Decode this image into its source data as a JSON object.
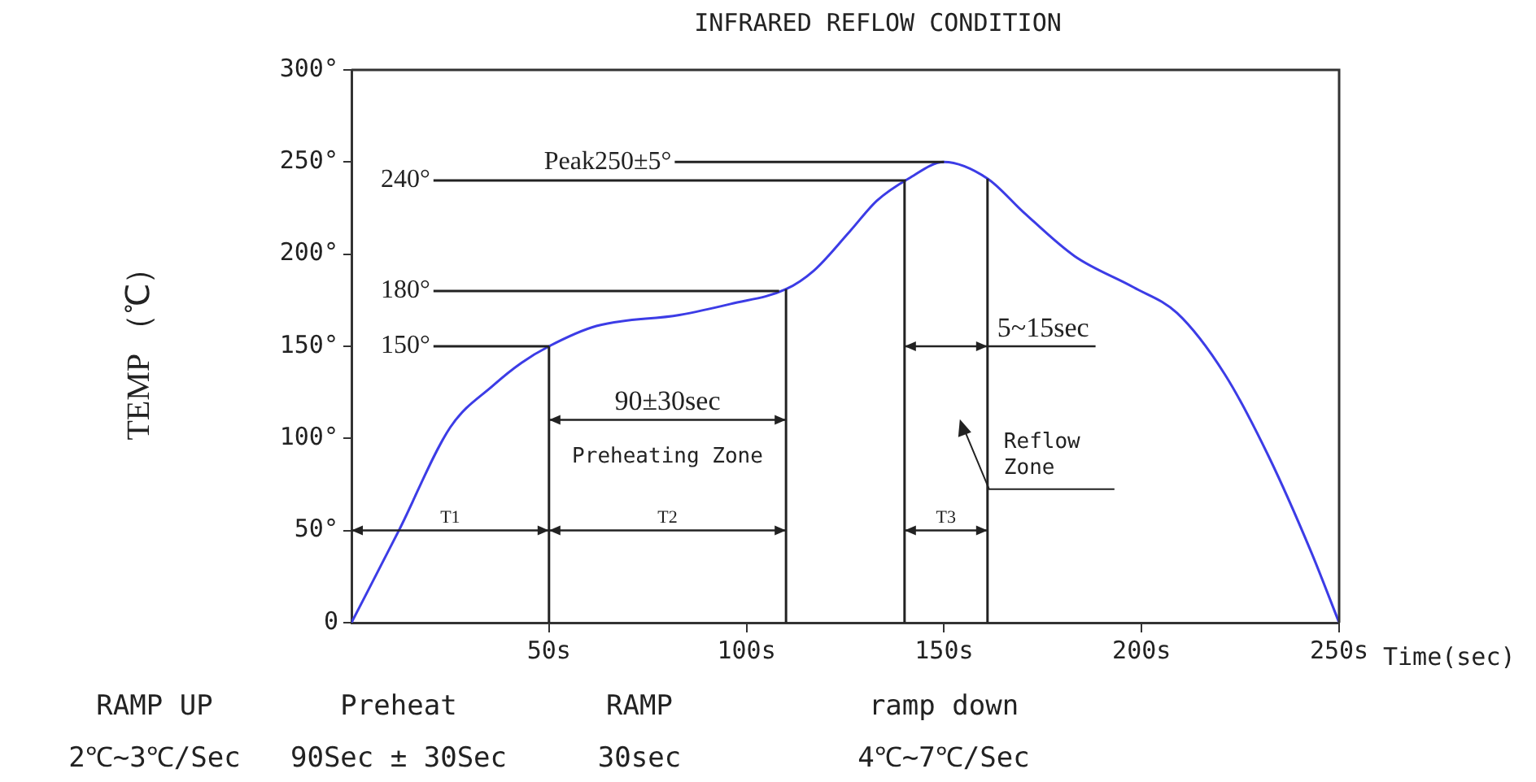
{
  "chart_data": {
    "type": "line",
    "title": "INFRARED REFLOW CONDITION",
    "xlabel": "Time(sec)",
    "ylabel": "TEMP （℃）",
    "x": [
      0,
      12,
      25,
      36,
      43,
      50,
      62,
      83,
      96,
      110,
      117,
      126,
      133,
      141,
      150,
      161,
      170,
      183,
      198,
      209,
      221,
      232,
      243,
      250
    ],
    "series": [
      {
        "color": "#3c3ce6",
        "values": [
          0,
          50,
          106,
          129,
          141,
          150,
          161,
          167,
          173,
          181,
          191,
          212,
          229,
          241,
          250,
          241,
          223,
          199,
          182,
          168,
          135,
          91,
          38,
          0
        ]
      }
    ],
    "xlim": [
      0,
      250
    ],
    "ylim": [
      0,
      300
    ],
    "xticks": [
      {
        "value": 50,
        "label": "50s"
      },
      {
        "value": 100,
        "label": "100s"
      },
      {
        "value": 150,
        "label": "150s"
      },
      {
        "value": 200,
        "label": "200s"
      },
      {
        "value": 250,
        "label": "250s"
      }
    ],
    "yticks": [
      {
        "value": 0,
        "label": "0"
      },
      {
        "value": 50,
        "label": "50°"
      },
      {
        "value": 100,
        "label": "100°"
      },
      {
        "value": 150,
        "label": "150°"
      },
      {
        "value": 200,
        "label": "200°"
      },
      {
        "value": 250,
        "label": "250°"
      },
      {
        "value": 300,
        "label": "300°"
      }
    ],
    "grid": false,
    "legend": false,
    "marker": "none",
    "line_style": "solid",
    "ref_lines": [
      {
        "axis": "y",
        "value": 150,
        "label": "150°"
      },
      {
        "axis": "y",
        "value": 180,
        "label": "180°"
      },
      {
        "axis": "y",
        "value": 240,
        "label": "240°"
      },
      {
        "axis": "y",
        "value": 250,
        "label": "Peak250±5°"
      },
      {
        "axis": "x",
        "value": 50
      },
      {
        "axis": "x",
        "value": 110
      },
      {
        "axis": "x",
        "value": 140
      },
      {
        "axis": "x",
        "value": 161
      }
    ],
    "annotations": [
      "Preheating Zone",
      "T1",
      "T2",
      "T3",
      "90±30sec",
      {
        "text": "5~15sec",
        "x": 161,
        "y": 150
      },
      "Reflow Zone",
      "RAMP UP",
      "Preheat",
      "RAMP",
      "ramp down",
      "2℃~3℃/Sec",
      "90Sec ± 30Sec",
      "30sec",
      "4℃~7℃/Sec"
    ]
  }
}
